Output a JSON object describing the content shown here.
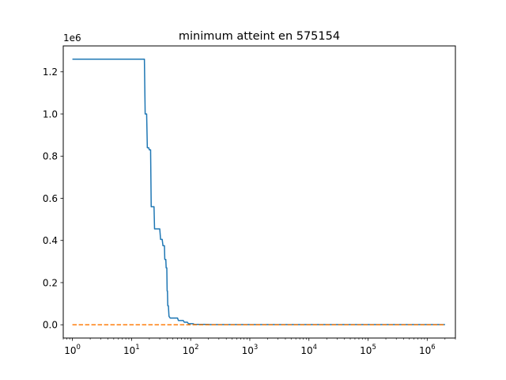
{
  "chart_data": {
    "type": "line",
    "title": "minimum atteint en 575154",
    "xlabel": "",
    "ylabel": "",
    "xscale": "log",
    "xlim": [
      0.7,
      3000000
    ],
    "ylim": [
      -63000,
      1323000
    ],
    "y_offset_text": "1e6",
    "x_ticks": [
      {
        "value": 1,
        "base": "10",
        "exp": "0"
      },
      {
        "value": 10,
        "base": "10",
        "exp": "1"
      },
      {
        "value": 100,
        "base": "10",
        "exp": "2"
      },
      {
        "value": 1000,
        "base": "10",
        "exp": "3"
      },
      {
        "value": 10000,
        "base": "10",
        "exp": "4"
      },
      {
        "value": 100000,
        "base": "10",
        "exp": "5"
      },
      {
        "value": 1000000,
        "base": "10",
        "exp": "6"
      }
    ],
    "y_ticks": [
      {
        "value": 0,
        "label": "0.0"
      },
      {
        "value": 200000,
        "label": "0.2"
      },
      {
        "value": 400000,
        "label": "0.4"
      },
      {
        "value": 600000,
        "label": "0.6"
      },
      {
        "value": 800000,
        "label": "0.8"
      },
      {
        "value": 1000000,
        "label": "1.0"
      },
      {
        "value": 1200000,
        "label": "1.2"
      }
    ],
    "grid": false,
    "legend": "none",
    "series": [
      {
        "color": "#1f77b4",
        "style": "solid",
        "points": [
          [
            1,
            1260000
          ],
          [
            16.5,
            1260000
          ],
          [
            17,
            1000000
          ],
          [
            18,
            1000000
          ],
          [
            18.5,
            840000
          ],
          [
            19.5,
            840000
          ],
          [
            20,
            830000
          ],
          [
            21,
            830000
          ],
          [
            21.5,
            560000
          ],
          [
            24,
            560000
          ],
          [
            24.5,
            455000
          ],
          [
            30,
            455000
          ],
          [
            31,
            405000
          ],
          [
            33,
            405000
          ],
          [
            34,
            375000
          ],
          [
            36,
            375000
          ],
          [
            36.5,
            310000
          ],
          [
            38,
            310000
          ],
          [
            38.5,
            270000
          ],
          [
            39.5,
            270000
          ],
          [
            40,
            160000
          ],
          [
            40.5,
            160000
          ],
          [
            41,
            90000
          ],
          [
            42,
            90000
          ],
          [
            43,
            40000
          ],
          [
            45,
            32000
          ],
          [
            60,
            32000
          ],
          [
            62,
            20000
          ],
          [
            75,
            20000
          ],
          [
            78,
            12000
          ],
          [
            88,
            12000
          ],
          [
            92,
            5000
          ],
          [
            110,
            5000
          ],
          [
            115,
            2000
          ],
          [
            200,
            2000
          ],
          [
            210,
            1000
          ],
          [
            2000000,
            1000
          ]
        ]
      },
      {
        "color": "#ff7f0e",
        "style": "dashed",
        "points": [
          [
            1,
            0
          ],
          [
            2000000,
            0
          ]
        ]
      }
    ]
  }
}
